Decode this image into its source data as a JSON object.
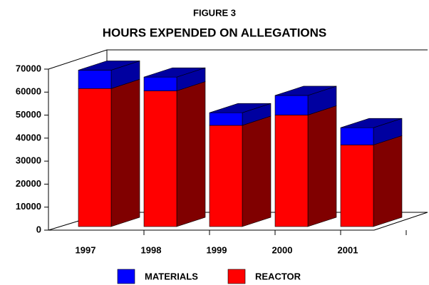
{
  "chart_data": {
    "type": "bar3d_stacked",
    "title": "FIGURE 3",
    "subtitle": "HOURS EXPENDED ON ALLEGATIONS",
    "categories": [
      "1997",
      "1998",
      "1999",
      "2000",
      "2001"
    ],
    "series": [
      {
        "name": "REACTOR",
        "color": "#ff0000",
        "side_color": "#800000",
        "values": [
          60000,
          59000,
          44000,
          48500,
          35500
        ]
      },
      {
        "name": "MATERIALS",
        "color": "#0000ff",
        "side_color": "#0000a0",
        "values": [
          8000,
          6000,
          5500,
          8500,
          7500
        ]
      }
    ],
    "ylim": [
      0,
      70000
    ],
    "yticks": [
      0,
      10000,
      20000,
      30000,
      40000,
      50000,
      60000,
      70000
    ]
  }
}
